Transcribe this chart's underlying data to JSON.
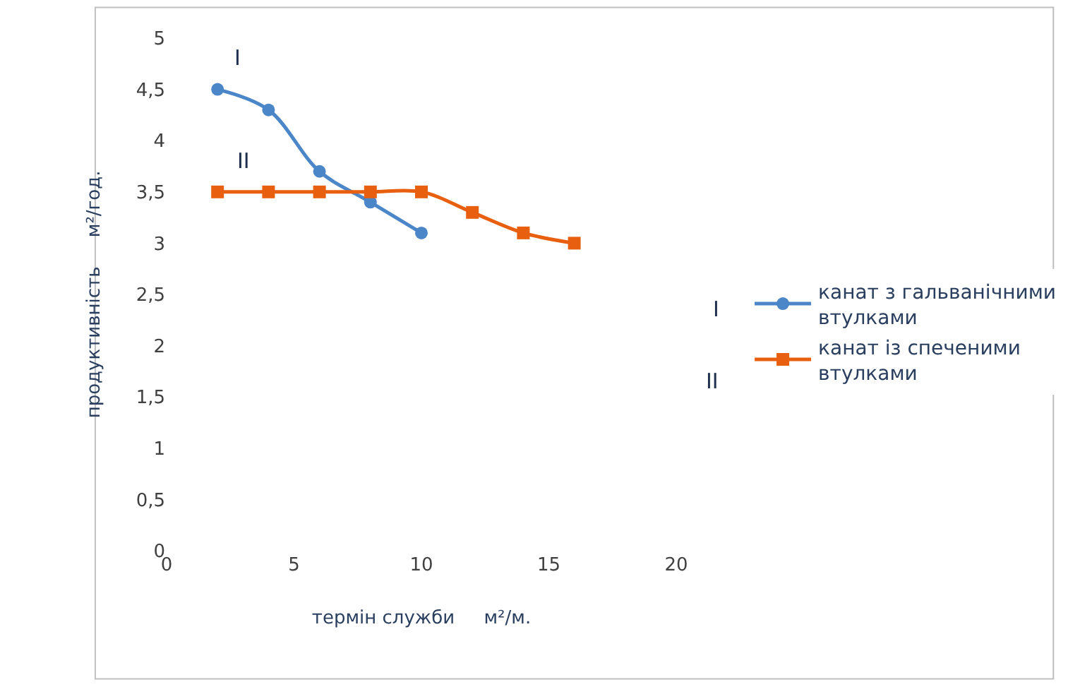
{
  "chart_data": {
    "type": "line",
    "xlabel": "термін служби     м²/м.",
    "ylabel": "продуктивність     м²/год.",
    "xlim": [
      0,
      20
    ],
    "xticks": [
      0,
      5,
      10,
      15,
      20
    ],
    "ylim": [
      0,
      5
    ],
    "yticks": [
      0,
      {
        "value": 0.5,
        "label": "0,5"
      },
      1,
      {
        "value": 1.5,
        "label": "1,5"
      },
      2,
      {
        "value": 2.5,
        "label": "2,5"
      },
      3,
      {
        "value": 3.5,
        "label": "3,5"
      },
      4,
      {
        "value": 4.5,
        "label": "4,5"
      },
      5
    ],
    "grid": false,
    "legend": "right",
    "series": [
      {
        "name": "канат з гальванічними втулками",
        "color": "#4a86c8",
        "marker": "circle",
        "x": [
          2,
          4,
          6,
          8,
          10
        ],
        "values": [
          4.5,
          4.3,
          3.7,
          3.4,
          3.1
        ]
      },
      {
        "name": "канат із спеченими втулками",
        "color": "#e8600f",
        "marker": "square",
        "x": [
          2,
          4,
          6,
          8,
          10,
          12,
          14,
          16
        ],
        "values": [
          3.5,
          3.5,
          3.5,
          3.5,
          3.5,
          3.3,
          3.1,
          3.0
        ]
      }
    ],
    "annotations": [
      "I",
      "II",
      "I",
      "II"
    ]
  }
}
